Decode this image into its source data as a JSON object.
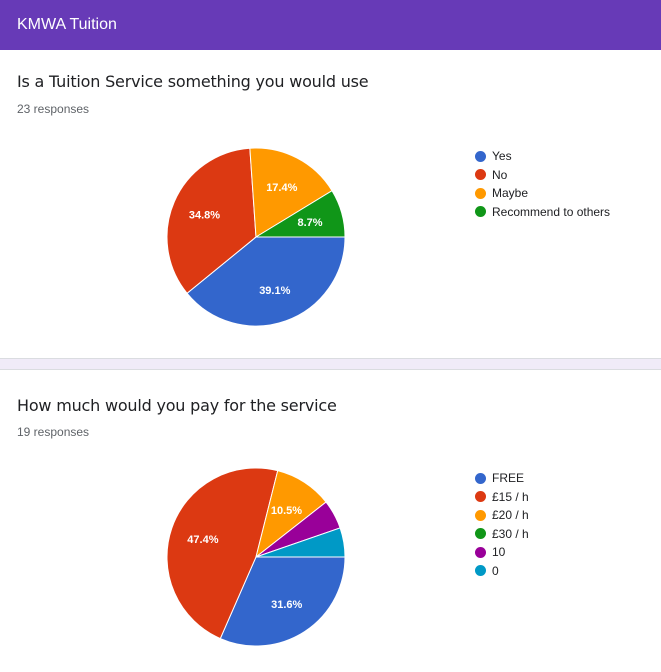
{
  "header": {
    "title": "KMWA Tuition"
  },
  "colors": {
    "header_bg": "#673ab7",
    "palette": [
      "#3366cc",
      "#dc3912",
      "#ff9900",
      "#109618",
      "#990099",
      "#0099c6"
    ]
  },
  "questions": [
    {
      "title": "Is a Tuition Service something you would use",
      "responses_text": "23 responses",
      "legend": [
        "Yes",
        "No",
        "Maybe",
        "Recommend to others"
      ]
    },
    {
      "title": "How much would you pay for the service",
      "responses_text": "19 responses",
      "legend": [
        "FREE",
        "£15 / h",
        "£20 / h",
        "£30 / h",
        "10",
        "0"
      ]
    }
  ],
  "chart_data": [
    {
      "type": "pie",
      "categories": [
        "Yes",
        "No",
        "Maybe",
        "Recommend to others"
      ],
      "values": [
        39.1,
        34.8,
        17.4,
        8.7
      ],
      "labels": [
        "39.1%",
        "34.8%",
        "17.4%",
        "8.7%"
      ],
      "legend_position": "right"
    },
    {
      "type": "pie",
      "categories": [
        "FREE",
        "£15 / h",
        "£20 / h",
        "£30 / h",
        "10",
        "0"
      ],
      "values": [
        31.6,
        47.4,
        10.5,
        0,
        5.3,
        5.3
      ],
      "labels": [
        "31.6%",
        "47.4%",
        "10.5%",
        "",
        "",
        ""
      ],
      "legend_position": "right"
    }
  ]
}
